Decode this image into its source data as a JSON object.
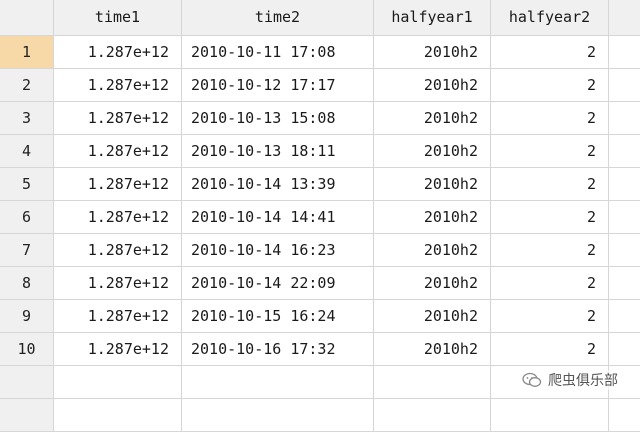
{
  "columns": [
    "time1",
    "time2",
    "halfyear1",
    "halfyear2"
  ],
  "rows": [
    {
      "n": "1",
      "time1": "1.287e+12",
      "time2": "2010-10-11 17:08",
      "halfyear1": "2010h2",
      "halfyear2": "2"
    },
    {
      "n": "2",
      "time1": "1.287e+12",
      "time2": "2010-10-12 17:17",
      "halfyear1": "2010h2",
      "halfyear2": "2"
    },
    {
      "n": "3",
      "time1": "1.287e+12",
      "time2": "2010-10-13 15:08",
      "halfyear1": "2010h2",
      "halfyear2": "2"
    },
    {
      "n": "4",
      "time1": "1.287e+12",
      "time2": "2010-10-13 18:11",
      "halfyear1": "2010h2",
      "halfyear2": "2"
    },
    {
      "n": "5",
      "time1": "1.287e+12",
      "time2": "2010-10-14 13:39",
      "halfyear1": "2010h2",
      "halfyear2": "2"
    },
    {
      "n": "6",
      "time1": "1.287e+12",
      "time2": "2010-10-14 14:41",
      "halfyear1": "2010h2",
      "halfyear2": "2"
    },
    {
      "n": "7",
      "time1": "1.287e+12",
      "time2": "2010-10-14 16:23",
      "halfyear1": "2010h2",
      "halfyear2": "2"
    },
    {
      "n": "8",
      "time1": "1.287e+12",
      "time2": "2010-10-14 22:09",
      "halfyear1": "2010h2",
      "halfyear2": "2"
    },
    {
      "n": "9",
      "time1": "1.287e+12",
      "time2": "2010-10-15 16:24",
      "halfyear1": "2010h2",
      "halfyear2": "2"
    },
    {
      "n": "10",
      "time1": "1.287e+12",
      "time2": "2010-10-16 17:32",
      "halfyear1": "2010h2",
      "halfyear2": "2"
    }
  ],
  "selected_row": "1",
  "watermark": {
    "text": "爬虫俱乐部",
    "icon": "wechat-icon"
  },
  "colors": {
    "selected": "#f7d9a8",
    "header_bg": "#f0f0f0",
    "grid_line": "#d6d6d6"
  }
}
